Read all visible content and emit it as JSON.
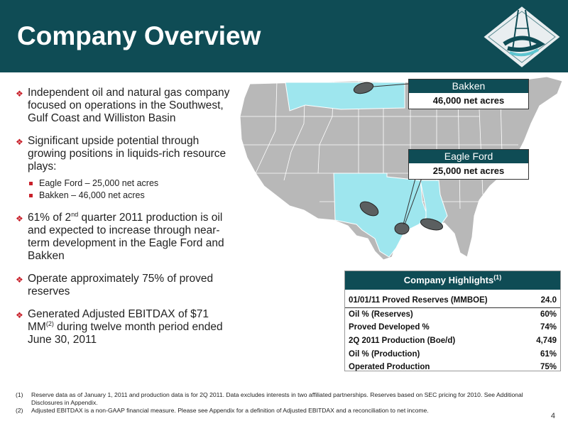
{
  "header": {
    "title": "Company Overview"
  },
  "bullets": {
    "b1": "Independent oil and natural gas company focused on operations in the Southwest, Gulf Coast and Williston Basin",
    "b2": "Significant upside potential through growing positions in liquids-rich resource plays:",
    "b2_sub1": "Eagle Ford – 25,000 net acres",
    "b2_sub2": "Bakken – 46,000 net acres",
    "b3_pre": "61% of 2",
    "b3_sup": "nd",
    "b3_post": " quarter 2011 production is oil and expected to increase through near-term development in the Eagle Ford and Bakken",
    "b4": "Operate approximately 75% of proved reserves",
    "b5_pre": "Generated Adjusted EBITDAX of  $71 MM",
    "b5_sup": "(2)",
    "b5_post": " during twelve month period ended June 30, 2011"
  },
  "callouts": {
    "bakken_name": "Bakken",
    "bakken_value": "46,000 net acres",
    "eagle_name": "Eagle Ford",
    "eagle_value": "25,000 net acres"
  },
  "highlights": {
    "title": "Company Highlights",
    "title_sup": "(1)",
    "rows": [
      {
        "label": "01/01/11 Proved Reserves (MMBOE)",
        "value": "24.0"
      },
      {
        "label": "Oil % (Reserves)",
        "value": "60%"
      },
      {
        "label": "Proved Developed %",
        "value": "74%"
      },
      {
        "label": "2Q 2011 Production (Boe/d)",
        "value": "4,749"
      },
      {
        "label": "Oil % (Production)",
        "value": "61%"
      },
      {
        "label": "Operated Production",
        "value": "75%"
      }
    ]
  },
  "footnotes": {
    "n1": "(1)",
    "t1": "Reserve data as of January 1, 2011 and production data is for 2Q 2011.  Data excludes interests in two affiliated partnerships. Reserves based on SEC pricing for 2010.  See Additional Disclosures in Appendix.",
    "n2": "(2)",
    "t2": "Adjusted EBITDAX is a non-GAAP financial measure.  Please see Appendix for a definition of Adjusted EBITDAX and a reconciliation to net income."
  },
  "page_number": "4",
  "colors": {
    "header": "#0f4c55",
    "bullet": "#c8202a",
    "highlight_states": "#9ee6ee",
    "map_states": "#b8b8b8"
  }
}
